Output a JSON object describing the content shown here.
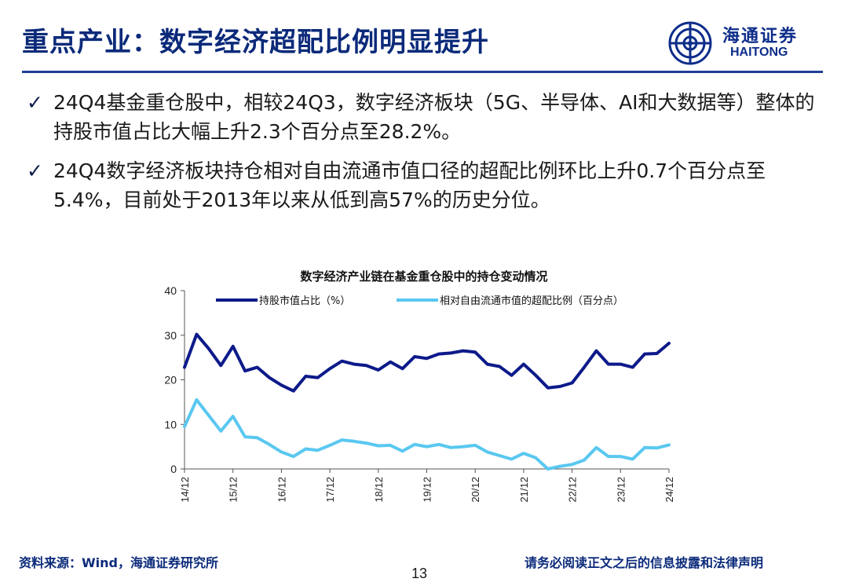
{
  "slide": {
    "title": "重点产业：数字经济超配比例明显提升",
    "page_number": "13",
    "source": "资料来源：Wind，海通证券研究所",
    "disclaimer": "请务必阅读正文之后的信息披露和法律声明"
  },
  "logo": {
    "name_cn": "海通证券",
    "name_en": "HAITONG",
    "color": "#0d2d8a"
  },
  "bullets": [
    {
      "icon": "check-icon",
      "text": "24Q4基金重仓股中，相较24Q3，数字经济板块（5G、半导体、AI和大数据等）整体的持股市值占比大幅上升2.3个百分点至28.2%。"
    },
    {
      "icon": "check-icon",
      "text": "24Q4数字经济板块持仓相对自由流通市值口径的超配比例环比上升0.7个百分点至5.4%，目前处于2013年以来从低到高57%的历史分位。"
    }
  ],
  "chart_data": {
    "type": "line",
    "title": "数字经济产业链在基金重仓股中的持仓变动情况",
    "xlabel": "",
    "ylabel": "",
    "ylim": [
      0,
      40
    ],
    "yticks": [
      0,
      10,
      20,
      30,
      40
    ],
    "grid": false,
    "legend_position": "top",
    "x": [
      "14/12",
      "15/03",
      "15/06",
      "15/09",
      "15/12",
      "16/03",
      "16/06",
      "16/09",
      "16/12",
      "17/03",
      "17/06",
      "17/09",
      "17/12",
      "18/03",
      "18/06",
      "18/09",
      "18/12",
      "19/03",
      "19/06",
      "19/09",
      "19/12",
      "20/03",
      "20/06",
      "20/09",
      "20/12",
      "21/03",
      "21/06",
      "21/09",
      "21/12",
      "22/03",
      "22/06",
      "22/09",
      "22/12",
      "23/03",
      "23/06",
      "23/09",
      "23/12",
      "24/03",
      "24/06",
      "24/09",
      "24/12"
    ],
    "xtick_labels": [
      "14/12",
      "15/12",
      "16/12",
      "17/12",
      "18/12",
      "19/12",
      "20/12",
      "21/12",
      "22/12",
      "23/12",
      "24/12"
    ],
    "series": [
      {
        "name": "持股市值占比（%）",
        "color": "#0d1a8a",
        "values": [
          22.8,
          30.2,
          27.0,
          23.2,
          27.5,
          22.0,
          22.8,
          20.5,
          18.8,
          17.5,
          20.8,
          20.5,
          22.5,
          24.2,
          23.5,
          23.2,
          22.2,
          24.0,
          22.5,
          25.2,
          24.8,
          25.8,
          26.0,
          26.5,
          26.2,
          23.5,
          23.0,
          21.0,
          23.5,
          21.0,
          18.2,
          18.5,
          19.3,
          22.8,
          26.5,
          23.5,
          23.5,
          22.8,
          25.8,
          25.9,
          28.2
        ]
      },
      {
        "name": "相对自由流通市值的超配比例（百分点）",
        "color": "#5ac8f0",
        "values": [
          9.5,
          15.5,
          12.0,
          8.5,
          11.8,
          7.2,
          7.0,
          5.5,
          3.8,
          2.8,
          4.5,
          4.2,
          5.3,
          6.5,
          6.2,
          5.8,
          5.2,
          5.3,
          4.0,
          5.5,
          5.0,
          5.5,
          4.8,
          5.0,
          5.3,
          3.8,
          3.0,
          2.2,
          3.5,
          2.5,
          0.0,
          0.6,
          1.0,
          2.0,
          4.8,
          2.8,
          2.8,
          2.2,
          4.8,
          4.7,
          5.4
        ]
      }
    ]
  }
}
